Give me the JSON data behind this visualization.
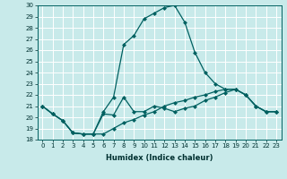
{
  "title": "",
  "xlabel": "Humidex (Indice chaleur)",
  "background_color": "#c8eaea",
  "grid_color": "#ffffff",
  "line_color": "#006060",
  "xlim": [
    -0.5,
    23.5
  ],
  "ylim": [
    18,
    30
  ],
  "x": [
    0,
    1,
    2,
    3,
    4,
    5,
    6,
    7,
    8,
    9,
    10,
    11,
    12,
    13,
    14,
    15,
    16,
    17,
    18,
    19,
    20,
    21,
    22,
    23
  ],
  "line_peak_y": [
    21.0,
    20.3,
    19.7,
    18.6,
    18.5,
    18.5,
    20.5,
    21.8,
    26.5,
    27.3,
    28.8,
    29.3,
    29.8,
    30.0,
    28.5,
    25.8,
    24.0,
    23.0,
    22.5,
    22.5,
    22.0,
    21.0,
    20.5,
    20.5
  ],
  "line_mid_y": [
    21.0,
    20.3,
    19.7,
    18.6,
    18.5,
    18.5,
    20.3,
    20.2,
    21.8,
    20.5,
    20.5,
    21.0,
    20.8,
    20.5,
    20.8,
    21.0,
    21.5,
    21.8,
    22.2,
    22.5,
    22.0,
    21.0,
    20.5,
    20.5
  ],
  "line_low_y": [
    21.0,
    20.3,
    19.7,
    18.6,
    18.5,
    18.5,
    18.5,
    19.0,
    19.5,
    19.8,
    20.2,
    20.5,
    21.0,
    21.3,
    21.5,
    21.8,
    22.0,
    22.3,
    22.5,
    22.5,
    22.0,
    21.0,
    20.5,
    20.5
  ],
  "yticks": [
    18,
    19,
    20,
    21,
    22,
    23,
    24,
    25,
    26,
    27,
    28,
    29,
    30
  ],
  "tick_fontsize": 5.0,
  "xlabel_fontsize": 6.0,
  "marker_size": 2.5,
  "linewidth": 0.9
}
